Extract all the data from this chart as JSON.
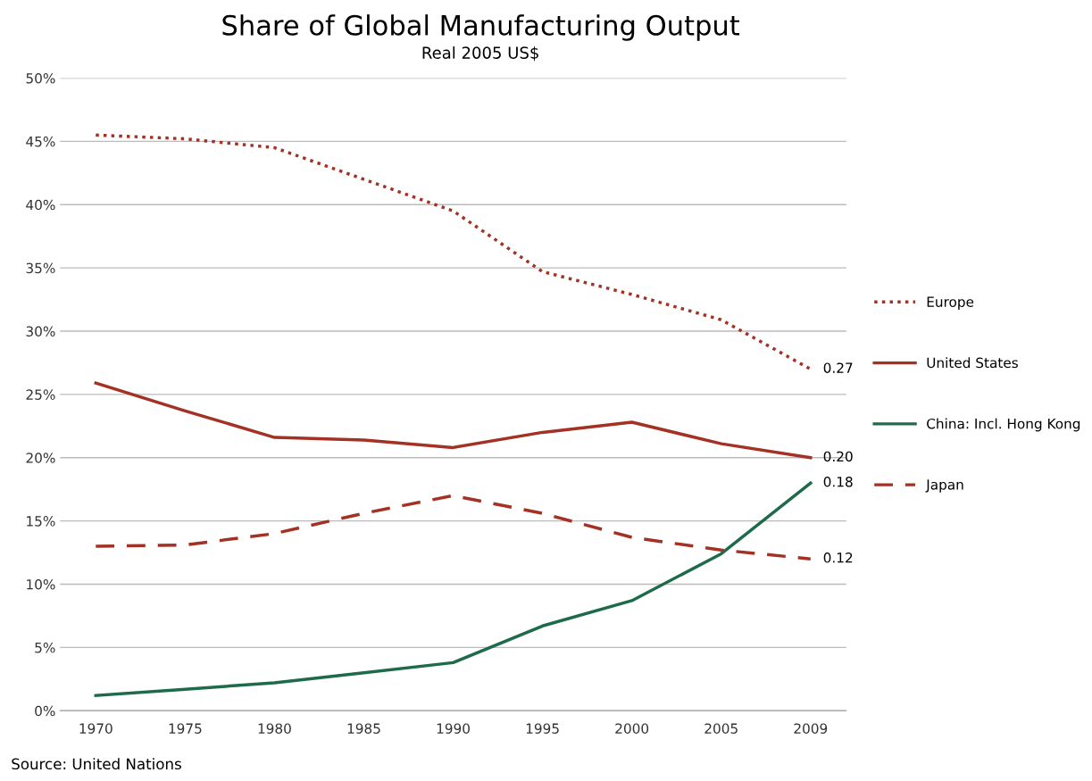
{
  "chart_data": {
    "type": "line",
    "title": "Share of Global Manufacturing Output",
    "subtitle": "Real 2005 US$",
    "categories": [
      "1970",
      "1975",
      "1980",
      "1985",
      "1990",
      "1995",
      "2000",
      "2005",
      "2009"
    ],
    "series": [
      {
        "name": "Europe",
        "color": "#a33224",
        "line_style": "dotted",
        "values": [
          0.455,
          0.452,
          0.445,
          0.42,
          0.395,
          0.347,
          0.329,
          0.309,
          0.27
        ],
        "value_labels": [
          null,
          null,
          null,
          null,
          null,
          null,
          null,
          null,
          "0.27"
        ]
      },
      {
        "name": "United States",
        "color": "#a33224",
        "line_style": "solid",
        "values": [
          0.259,
          0.237,
          0.216,
          0.214,
          0.208,
          0.22,
          0.228,
          0.211,
          0.2
        ],
        "value_labels": [
          null,
          null,
          null,
          null,
          null,
          null,
          null,
          null,
          "0.20"
        ]
      },
      {
        "name": "China: Incl. Hong Kong",
        "color": "#1e6b4c",
        "line_style": "solid",
        "values": [
          0.012,
          0.017,
          0.022,
          0.03,
          0.038,
          0.067,
          0.087,
          0.124,
          0.18
        ],
        "value_labels": [
          null,
          null,
          null,
          null,
          null,
          null,
          null,
          null,
          "0.18"
        ]
      },
      {
        "name": "Japan",
        "color": "#a33224",
        "line_style": "dashed",
        "values": [
          0.13,
          0.131,
          0.14,
          0.156,
          0.17,
          0.156,
          0.137,
          0.127,
          0.12
        ],
        "value_labels": [
          null,
          null,
          null,
          null,
          null,
          null,
          null,
          null,
          "0.12"
        ]
      }
    ],
    "ylim": [
      0,
      0.5
    ],
    "yticks": [
      {
        "value": 0,
        "label": "0%"
      },
      {
        "value": 0.05,
        "label": "5%"
      },
      {
        "value": 0.1,
        "label": "10%"
      },
      {
        "value": 0.15,
        "label": "15%"
      },
      {
        "value": 0.2,
        "label": "20%"
      },
      {
        "value": 0.25,
        "label": "25%"
      },
      {
        "value": 0.3,
        "label": "30%"
      },
      {
        "value": 0.35,
        "label": "35%"
      },
      {
        "value": 0.4,
        "label": "40%"
      },
      {
        "value": 0.45,
        "label": "45%"
      },
      {
        "value": 0.5,
        "label": "50%"
      }
    ],
    "grid": "y",
    "legend": "right",
    "marker": "none",
    "annotations": [
      "Source: United Nations"
    ]
  }
}
